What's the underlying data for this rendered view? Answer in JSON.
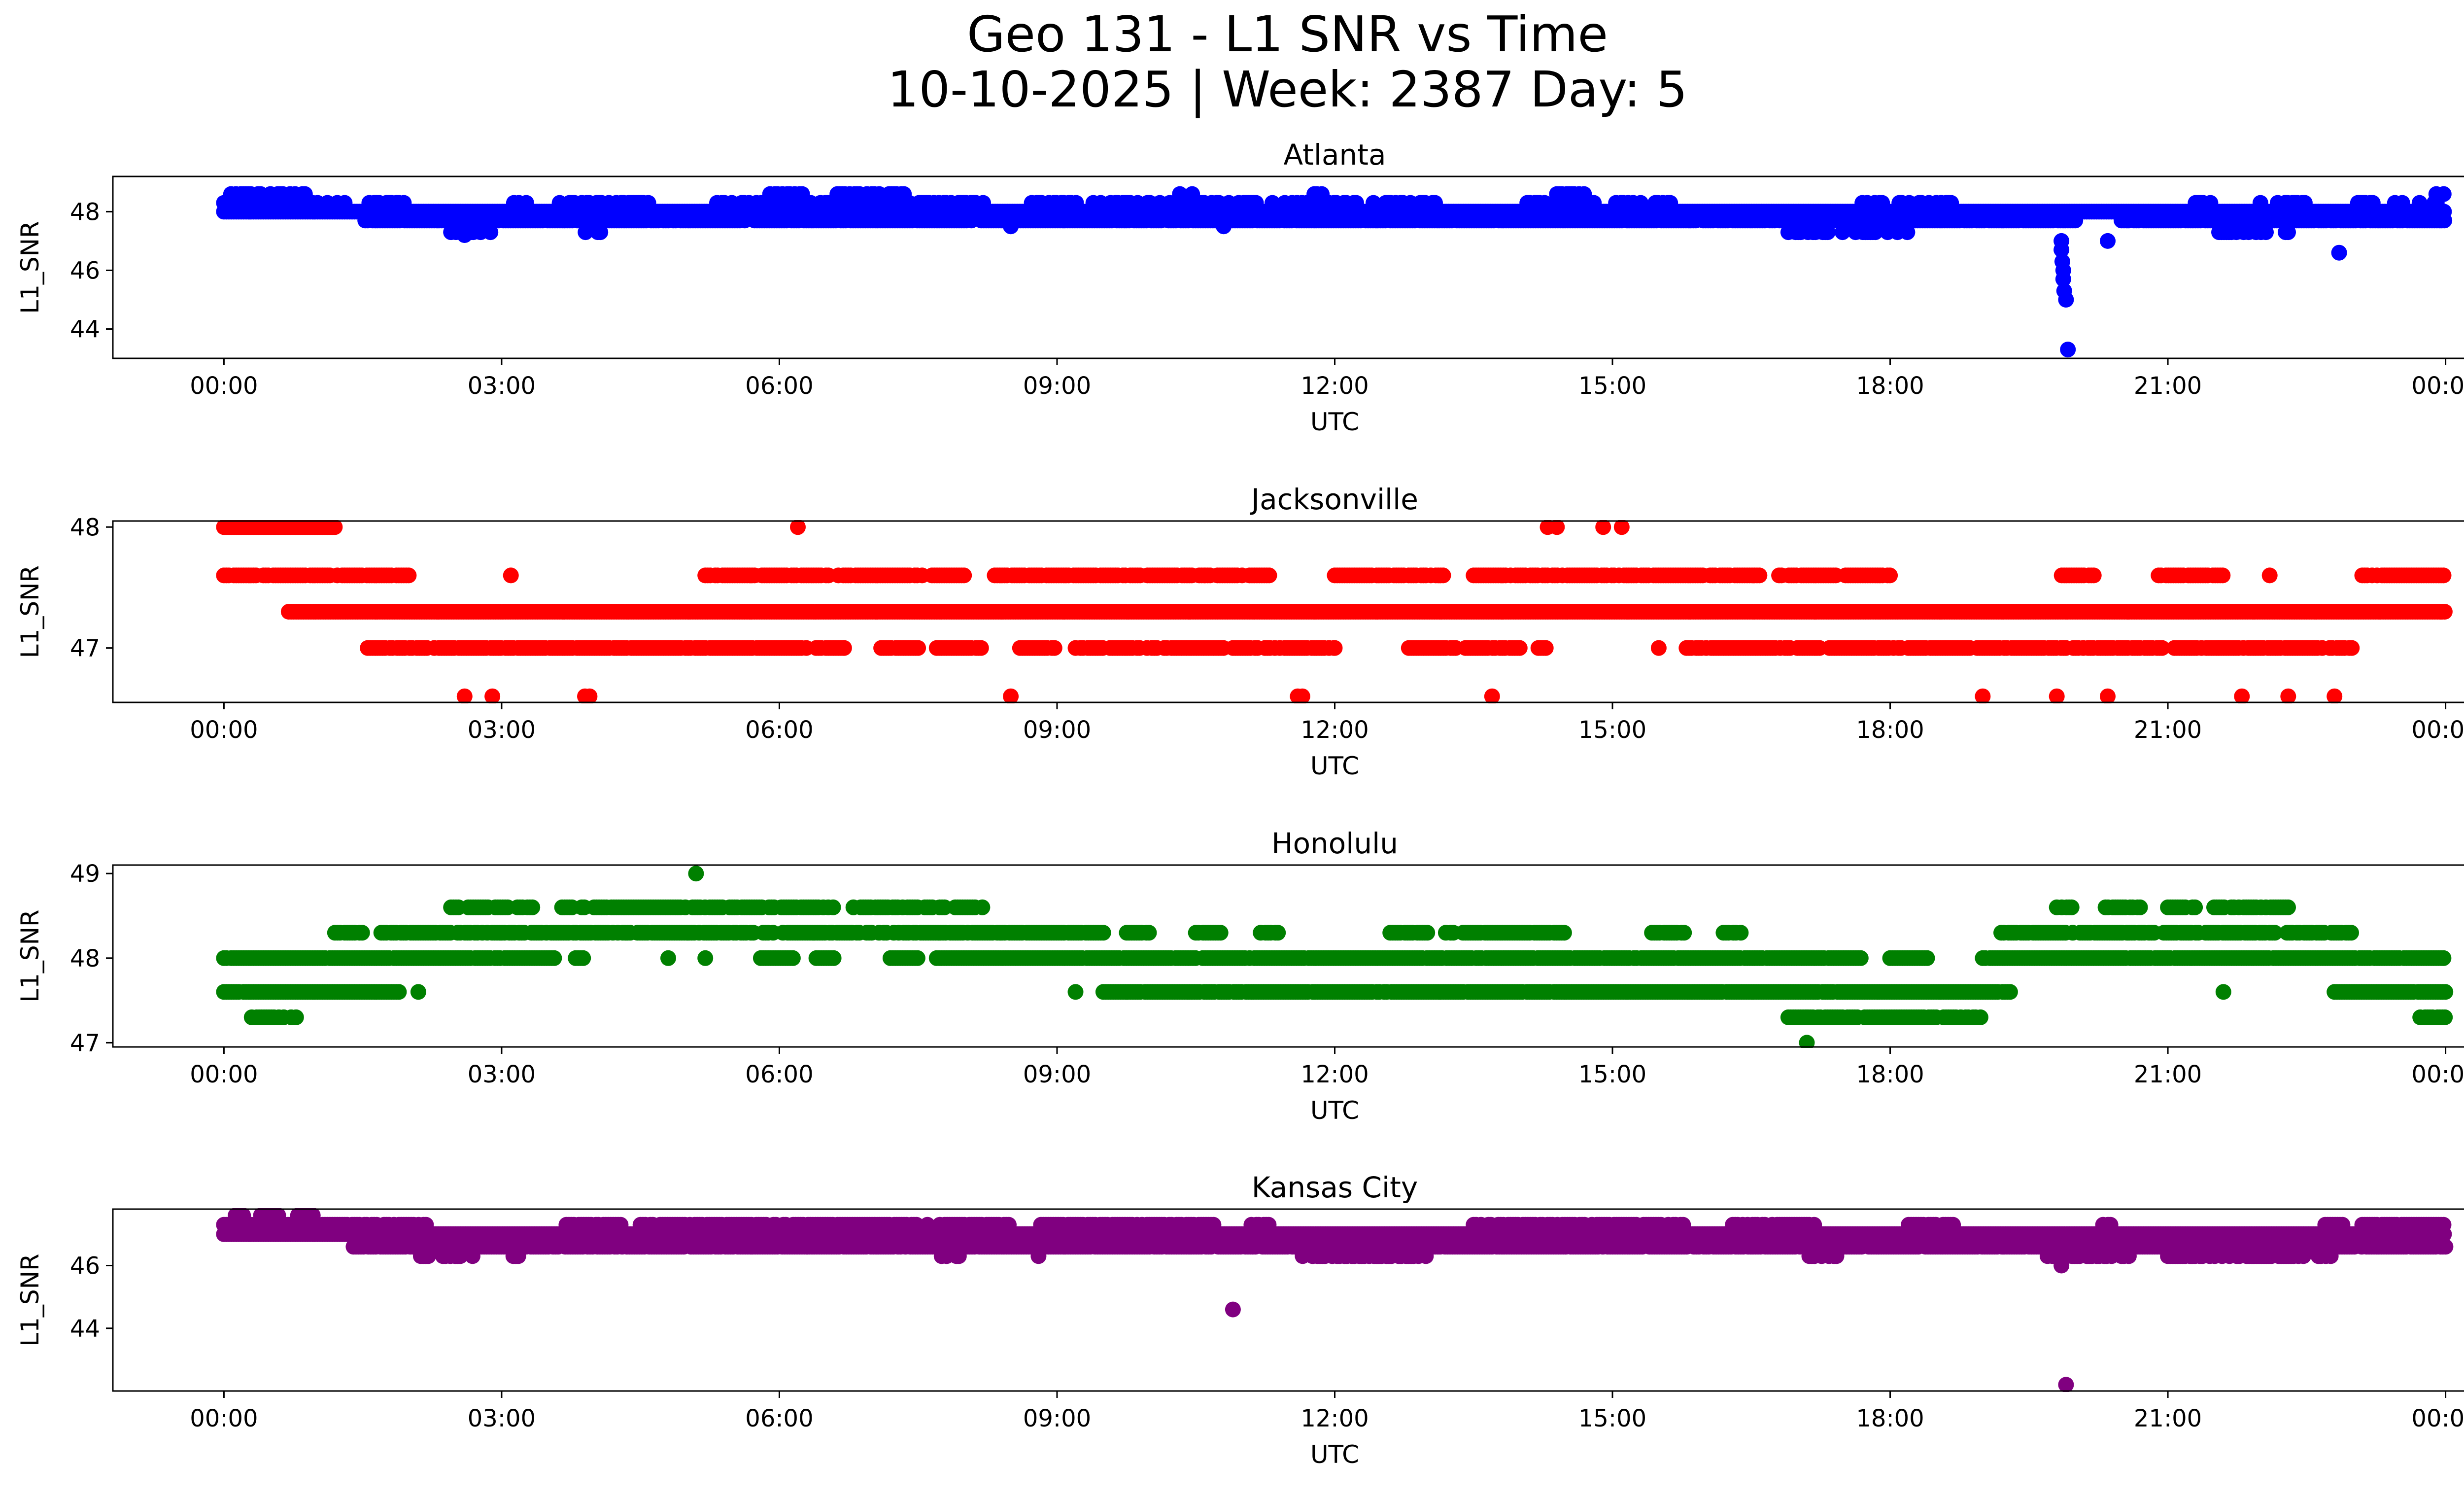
{
  "title": "Geo 131 - L1 SNR vs Time",
  "subtitle": "10-10-2025 | Week: 2387 Day: 5",
  "chart_data": [
    {
      "type": "scatter",
      "title": "Atlanta",
      "xlabel": "UTC",
      "ylabel": "L1_SNR",
      "color": "#0000ff",
      "x_ticks": [
        "00:00",
        "03:00",
        "06:00",
        "09:00",
        "12:00",
        "15:00",
        "18:00",
        "21:00",
        "00:00"
      ],
      "xlim": [
        -1.2,
        25.2
      ],
      "ylim": [
        43.0,
        49.2
      ],
      "y_ticks": [
        44,
        46,
        48
      ],
      "bands": [
        {
          "y": 48.6,
          "ranges": [
            [
              0.05,
              0.9
            ],
            [
              5.9,
              6.3
            ],
            [
              6.6,
              7.4
            ],
            [
              10.3,
              10.5
            ],
            [
              11.7,
              11.9
            ],
            [
              14.4,
              14.7
            ],
            [
              23.9,
              24.0
            ]
          ],
          "density": 0.55
        },
        {
          "y": 48.3,
          "ranges": [
            [
              0,
              2.1
            ],
            [
              3.0,
              3.3
            ],
            [
              3.6,
              4.6
            ],
            [
              5.3,
              8.3
            ],
            [
              8.7,
              11.2
            ],
            [
              11.3,
              13.1
            ],
            [
              14.0,
              15.7
            ],
            [
              17.7,
              18.7
            ],
            [
              21.3,
              21.5
            ],
            [
              22.0,
              22.5
            ],
            [
              23.0,
              24.0
            ]
          ],
          "density": 0.45
        },
        {
          "y": 48.0,
          "ranges": [
            [
              0,
              24.0
            ]
          ],
          "density": 1.0
        },
        {
          "y": 47.7,
          "ranges": [
            [
              1.5,
              20.0
            ],
            [
              20.5,
              24.0
            ]
          ],
          "density": 0.9
        },
        {
          "y": 47.3,
          "ranges": [
            [
              2.4,
              2.9
            ],
            [
              3.8,
              4.1
            ],
            [
              16.9,
              17.5
            ],
            [
              17.6,
              18.2
            ],
            [
              21.5,
              22.3
            ]
          ],
          "density": 0.45
        }
      ],
      "points": [
        [
          19.85,
          47.0
        ],
        [
          19.85,
          46.7
        ],
        [
          19.86,
          46.3
        ],
        [
          19.87,
          46.0
        ],
        [
          19.87,
          45.7
        ],
        [
          19.88,
          45.3
        ],
        [
          19.9,
          45.0
        ],
        [
          19.92,
          43.3
        ],
        [
          22.85,
          46.6
        ],
        [
          20.35,
          47.0
        ],
        [
          2.6,
          47.2
        ],
        [
          10.8,
          47.5
        ],
        [
          8.5,
          47.5
        ]
      ]
    },
    {
      "type": "scatter",
      "title": "Jacksonville",
      "xlabel": "UTC",
      "ylabel": "L1_SNR",
      "color": "#ff0000",
      "x_ticks": [
        "00:00",
        "03:00",
        "06:00",
        "09:00",
        "12:00",
        "15:00",
        "18:00",
        "21:00",
        "00:00"
      ],
      "xlim": [
        -1.2,
        25.2
      ],
      "ylim": [
        46.55,
        48.05
      ],
      "y_ticks": [
        47,
        48
      ],
      "bands": [
        {
          "y": 48.0,
          "ranges": [
            [
              0,
              1.2
            ]
          ],
          "density": 1.0
        },
        {
          "y": 47.6,
          "ranges": [
            [
              0,
              2.0
            ],
            [
              5.2,
              8.0
            ],
            [
              8.3,
              10.6
            ],
            [
              10.6,
              11.3
            ],
            [
              12.0,
              13.2
            ],
            [
              13.5,
              16.6
            ],
            [
              16.8,
              18.0
            ],
            [
              19.8,
              20.2
            ],
            [
              20.9,
              21.6
            ],
            [
              23.1,
              24.0
            ]
          ],
          "density": 0.85
        },
        {
          "y": 47.3,
          "ranges": [
            [
              0.7,
              24.0
            ]
          ],
          "density": 1.0
        },
        {
          "y": 47.0,
          "ranges": [
            [
              1.5,
              6.7
            ],
            [
              7.1,
              7.5
            ],
            [
              7.7,
              8.2
            ],
            [
              8.6,
              9.0
            ],
            [
              9.2,
              10.8
            ],
            [
              10.9,
              12.0
            ],
            [
              12.8,
              14.0
            ],
            [
              14.2,
              14.3
            ],
            [
              15.8,
              23.0
            ]
          ],
          "density": 0.85
        }
      ],
      "points": [
        [
          2.6,
          46.6
        ],
        [
          2.9,
          46.6
        ],
        [
          3.9,
          46.6
        ],
        [
          3.95,
          46.6
        ],
        [
          8.5,
          46.6
        ],
        [
          11.6,
          46.6
        ],
        [
          11.65,
          46.6
        ],
        [
          13.7,
          46.6
        ],
        [
          19.0,
          46.6
        ],
        [
          19.8,
          46.6
        ],
        [
          20.35,
          46.6
        ],
        [
          21.8,
          46.6
        ],
        [
          22.3,
          46.6
        ],
        [
          22.8,
          46.6
        ],
        [
          6.2,
          48.0
        ],
        [
          14.3,
          48.0
        ],
        [
          14.4,
          48.0
        ],
        [
          14.9,
          48.0
        ],
        [
          15.1,
          48.0
        ],
        [
          3.1,
          47.6
        ],
        [
          12.0,
          47.0
        ],
        [
          15.5,
          47.0
        ],
        [
          6.7,
          47.0
        ],
        [
          22.1,
          47.6
        ],
        [
          21.55,
          47.0
        ]
      ]
    },
    {
      "type": "scatter",
      "title": "Honolulu",
      "xlabel": "UTC",
      "ylabel": "L1_SNR",
      "color": "#008000",
      "x_ticks": [
        "00:00",
        "03:00",
        "06:00",
        "09:00",
        "12:00",
        "15:00",
        "18:00",
        "21:00",
        "00:00"
      ],
      "xlim": [
        -1.2,
        25.2
      ],
      "ylim": [
        46.95,
        49.1
      ],
      "y_ticks": [
        47,
        48,
        49
      ],
      "bands": [
        {
          "y": 48.6,
          "ranges": [
            [
              2.4,
              3.4
            ],
            [
              3.6,
              6.6
            ],
            [
              6.8,
              7.8
            ],
            [
              7.9,
              8.2
            ],
            [
              19.8,
              20.0
            ],
            [
              20.3,
              20.7
            ],
            [
              21.0,
              21.3
            ],
            [
              21.5,
              22.3
            ]
          ],
          "density": 0.75
        },
        {
          "y": 48.3,
          "ranges": [
            [
              1.2,
              1.5
            ],
            [
              1.7,
              9.5
            ],
            [
              9.7,
              10.0
            ],
            [
              10.5,
              10.8
            ],
            [
              11.2,
              11.4
            ],
            [
              12.6,
              13.0
            ],
            [
              13.2,
              14.5
            ],
            [
              15.4,
              15.8
            ],
            [
              16.2,
              16.4
            ],
            [
              19.2,
              23.0
            ]
          ],
          "density": 0.8
        },
        {
          "y": 48.0,
          "ranges": [
            [
              0,
              3.6
            ],
            [
              3.8,
              3.9
            ],
            [
              5.8,
              6.2
            ],
            [
              6.4,
              6.6
            ],
            [
              7.2,
              7.5
            ],
            [
              7.7,
              17.7
            ],
            [
              18.0,
              18.4
            ],
            [
              19.0,
              24.0
            ]
          ],
          "density": 0.95
        },
        {
          "y": 47.6,
          "ranges": [
            [
              0,
              1.9
            ],
            [
              9.5,
              19.3
            ],
            [
              22.8,
              24.0
            ]
          ],
          "density": 0.95
        },
        {
          "y": 47.3,
          "ranges": [
            [
              0.3,
              0.8
            ],
            [
              16.9,
              19.0
            ],
            [
              23.7,
              24.0
            ]
          ],
          "density": 0.8
        }
      ],
      "points": [
        [
          5.1,
          49.0
        ],
        [
          17.1,
          47.0
        ],
        [
          4.8,
          48.0
        ],
        [
          5.2,
          48.0
        ],
        [
          9.2,
          47.6
        ],
        [
          21.6,
          47.6
        ],
        [
          2.1,
          47.6
        ],
        [
          17.1,
          47.3
        ]
      ]
    },
    {
      "type": "scatter",
      "title": "Kansas City",
      "xlabel": "UTC",
      "ylabel": "L1_SNR",
      "color": "#800080",
      "x_ticks": [
        "00:00",
        "03:00",
        "06:00",
        "09:00",
        "12:00",
        "15:00",
        "18:00",
        "21:00",
        "00:00"
      ],
      "xlim": [
        -1.2,
        25.2
      ],
      "ylim": [
        42.0,
        47.8
      ],
      "y_ticks": [
        44,
        46
      ],
      "bands": [
        {
          "y": 47.6,
          "ranges": [
            [
              0.1,
              0.25
            ],
            [
              0.4,
              0.6
            ],
            [
              0.8,
              1.0
            ]
          ],
          "density": 0.8
        },
        {
          "y": 47.3,
          "ranges": [
            [
              0,
              2.2
            ],
            [
              3.7,
              4.4
            ],
            [
              4.5,
              7.5
            ],
            [
              7.6,
              8.5
            ],
            [
              8.8,
              10.7
            ],
            [
              11.1,
              11.3
            ],
            [
              13.5,
              15.8
            ],
            [
              16.3,
              17.2
            ],
            [
              18.2,
              18.7
            ],
            [
              20.3,
              20.4
            ],
            [
              22.7,
              22.9
            ],
            [
              23.1,
              24.0
            ]
          ],
          "density": 0.8
        },
        {
          "y": 47.0,
          "ranges": [
            [
              0,
              24.0
            ]
          ],
          "density": 1.0
        },
        {
          "y": 46.6,
          "ranges": [
            [
              1.4,
              24.0
            ]
          ],
          "density": 0.9
        },
        {
          "y": 46.3,
          "ranges": [
            [
              2.1,
              2.7
            ],
            [
              3.1,
              3.2
            ],
            [
              7.7,
              8.0
            ],
            [
              11.6,
              13.0
            ],
            [
              17.1,
              17.5
            ],
            [
              19.7,
              20.6
            ],
            [
              21.0,
              22.5
            ],
            [
              22.6,
              22.8
            ]
          ],
          "density": 0.6
        }
      ],
      "points": [
        [
          10.9,
          44.6
        ],
        [
          19.9,
          42.2
        ],
        [
          19.85,
          46.0
        ],
        [
          6.3,
          46.6
        ],
        [
          8.8,
          46.3
        ]
      ]
    }
  ]
}
